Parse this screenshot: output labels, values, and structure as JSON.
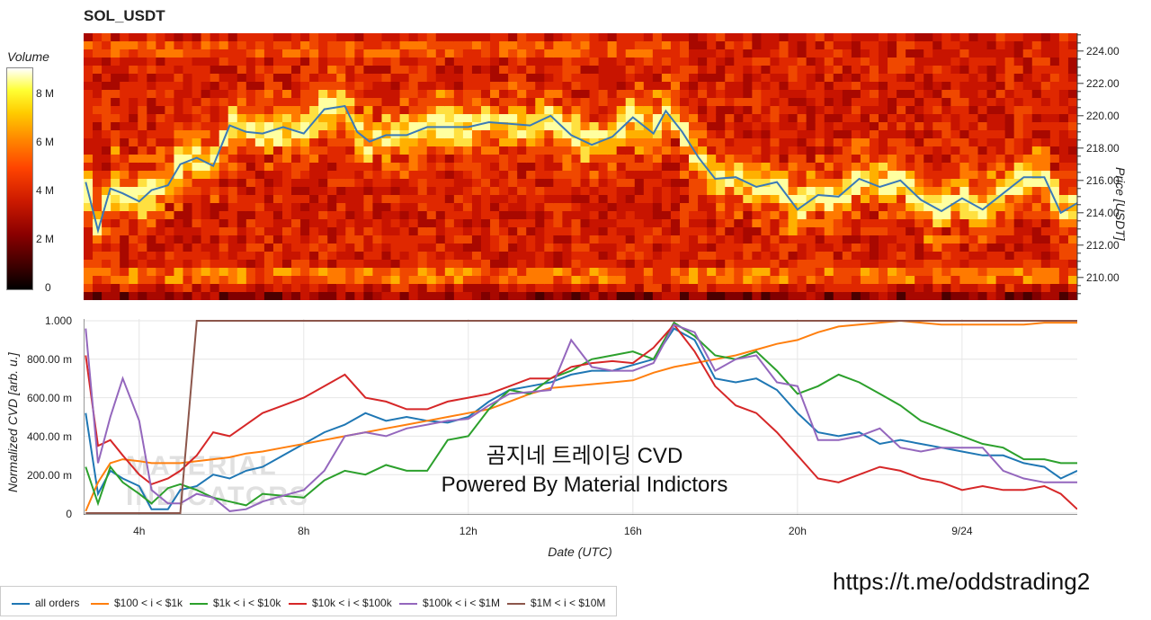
{
  "title": "SOL_USDT",
  "colorbar": {
    "label": "Volume",
    "ticks": [
      "8 M",
      "6 M",
      "4 M",
      "2 M",
      "0"
    ],
    "tick_values": [
      8,
      6,
      4,
      2,
      0
    ],
    "max": 9.3
  },
  "price_axis": {
    "label": "Price [USDT]",
    "ticks": [
      "224.00",
      "222.00",
      "220.00",
      "218.00",
      "216.00",
      "214.00",
      "212.00",
      "210.00"
    ],
    "tick_values": [
      224,
      222,
      220,
      218,
      216,
      214,
      212,
      210
    ],
    "range": [
      208.6,
      225.1
    ]
  },
  "cvd_axis": {
    "label": "Normalized CVD [arb. u.]",
    "ticks": [
      "1.000",
      "800.00 m",
      "600.00 m",
      "400.00 m",
      "200.00 m",
      "0"
    ],
    "tick_values": [
      1.0,
      0.8,
      0.6,
      0.4,
      0.2,
      0
    ]
  },
  "x_axis": {
    "label": "Date (UTC)",
    "ticks": [
      "4h",
      "8h",
      "12h",
      "16h",
      "20h",
      "9/24"
    ],
    "tick_values": [
      4,
      8,
      12,
      16,
      20,
      24
    ],
    "range": [
      2.65,
      26.8
    ]
  },
  "annotation": {
    "line1": "곰지네 트레이딩 CVD",
    "line2": "Powered By Material Indictors"
  },
  "watermark": [
    "MATERIAL",
    "INDICATORS"
  ],
  "link": "https://t.me/oddstrading2",
  "chart_data": [
    {
      "type": "heatmap",
      "title": "SOL_USDT",
      "ylabel": "Price [USDT]",
      "colorbar_label": "Volume",
      "price_line": {
        "color": "#3a7ab8",
        "x": [
          2.7,
          3.0,
          3.3,
          3.6,
          4.0,
          4.3,
          4.7,
          5.0,
          5.4,
          5.8,
          6.2,
          6.6,
          7.0,
          7.5,
          8.0,
          8.5,
          9.0,
          9.3,
          9.6,
          10.0,
          10.5,
          11.0,
          11.5,
          12.0,
          12.5,
          13.0,
          13.5,
          14.0,
          14.5,
          15.0,
          15.5,
          16.0,
          16.5,
          16.8,
          17.2,
          17.6,
          18.0,
          18.5,
          19.0,
          19.5,
          20.0,
          20.5,
          21.0,
          21.5,
          22.0,
          22.5,
          23.0,
          23.5,
          24.0,
          24.5,
          25.0,
          25.5,
          26.0,
          26.4,
          26.8
        ],
        "y": [
          215.9,
          212.9,
          215.5,
          215.2,
          214.7,
          215.4,
          215.7,
          217.0,
          217.4,
          216.9,
          219.4,
          219.0,
          218.9,
          219.3,
          218.9,
          220.4,
          220.6,
          219.0,
          218.4,
          218.8,
          218.8,
          219.3,
          219.3,
          219.3,
          219.6,
          219.5,
          219.4,
          220.0,
          218.8,
          218.2,
          218.7,
          219.9,
          218.9,
          220.3,
          219.0,
          217.4,
          216.1,
          216.2,
          215.6,
          215.9,
          214.2,
          215.1,
          215.0,
          216.1,
          215.6,
          216.0,
          214.8,
          214.1,
          214.9,
          214.2,
          215.2,
          216.2,
          216.2,
          214.0,
          214.6
        ]
      }
    },
    {
      "type": "line",
      "xlabel": "Date (UTC)",
      "ylabel": "Normalized CVD [arb. u.]",
      "ylim": [
        0,
        1.0
      ],
      "x": [
        2.7,
        3.0,
        3.3,
        3.6,
        4.0,
        4.3,
        4.7,
        5.0,
        5.4,
        5.8,
        6.2,
        6.6,
        7.0,
        7.5,
        8.0,
        8.5,
        9.0,
        9.5,
        10.0,
        10.5,
        11.0,
        11.5,
        12.0,
        12.5,
        13.0,
        13.5,
        14.0,
        14.5,
        15.0,
        15.5,
        16.0,
        16.5,
        17.0,
        17.5,
        18.0,
        18.5,
        19.0,
        19.5,
        20.0,
        20.5,
        21.0,
        21.5,
        22.0,
        22.5,
        23.0,
        23.5,
        24.0,
        24.5,
        25.0,
        25.5,
        26.0,
        26.4,
        26.8
      ],
      "series": [
        {
          "name": "all orders",
          "color": "#1f77b4",
          "values": [
            0.52,
            0.1,
            0.22,
            0.18,
            0.14,
            0.02,
            0.02,
            0.12,
            0.14,
            0.2,
            0.18,
            0.22,
            0.24,
            0.3,
            0.36,
            0.42,
            0.46,
            0.52,
            0.48,
            0.5,
            0.48,
            0.47,
            0.5,
            0.58,
            0.64,
            0.66,
            0.68,
            0.72,
            0.74,
            0.74,
            0.77,
            0.8,
            0.96,
            0.9,
            0.7,
            0.68,
            0.7,
            0.64,
            0.52,
            0.42,
            0.4,
            0.42,
            0.36,
            0.38,
            0.36,
            0.34,
            0.32,
            0.3,
            0.3,
            0.26,
            0.24,
            0.18,
            0.22
          ]
        },
        {
          "name": "$100 < i < $1k",
          "color": "#ff7f0e",
          "values": [
            0.01,
            0.16,
            0.26,
            0.28,
            0.27,
            0.26,
            0.26,
            0.26,
            0.27,
            0.28,
            0.29,
            0.31,
            0.32,
            0.34,
            0.36,
            0.38,
            0.4,
            0.42,
            0.44,
            0.46,
            0.48,
            0.5,
            0.52,
            0.54,
            0.58,
            0.62,
            0.65,
            0.66,
            0.67,
            0.68,
            0.69,
            0.73,
            0.76,
            0.78,
            0.8,
            0.82,
            0.85,
            0.88,
            0.9,
            0.94,
            0.97,
            0.98,
            0.99,
            1.0,
            0.99,
            0.98,
            0.98,
            0.98,
            0.98,
            0.98,
            0.99,
            0.99,
            0.99
          ]
        },
        {
          "name": "$1k < i < $10k",
          "color": "#2ca02c",
          "values": [
            0.24,
            0.05,
            0.24,
            0.16,
            0.1,
            0.05,
            0.13,
            0.15,
            0.12,
            0.08,
            0.06,
            0.04,
            0.1,
            0.09,
            0.08,
            0.17,
            0.22,
            0.2,
            0.25,
            0.22,
            0.22,
            0.38,
            0.4,
            0.54,
            0.64,
            0.62,
            0.7,
            0.74,
            0.8,
            0.82,
            0.84,
            0.8,
            0.99,
            0.92,
            0.82,
            0.8,
            0.84,
            0.74,
            0.62,
            0.66,
            0.72,
            0.68,
            0.62,
            0.56,
            0.48,
            0.44,
            0.4,
            0.36,
            0.34,
            0.28,
            0.28,
            0.26,
            0.26
          ]
        },
        {
          "name": "$10k < i < $100k",
          "color": "#d62728",
          "values": [
            0.82,
            0.35,
            0.38,
            0.3,
            0.2,
            0.15,
            0.18,
            0.22,
            0.3,
            0.42,
            0.4,
            0.46,
            0.52,
            0.56,
            0.6,
            0.66,
            0.72,
            0.6,
            0.58,
            0.54,
            0.54,
            0.58,
            0.6,
            0.62,
            0.66,
            0.7,
            0.7,
            0.76,
            0.78,
            0.79,
            0.78,
            0.86,
            0.98,
            0.84,
            0.66,
            0.56,
            0.52,
            0.42,
            0.3,
            0.18,
            0.16,
            0.2,
            0.24,
            0.22,
            0.18,
            0.16,
            0.12,
            0.14,
            0.12,
            0.12,
            0.14,
            0.1,
            0.02
          ]
        },
        {
          "name": "$100k < i < $1M",
          "color": "#9467bd",
          "values": [
            0.96,
            0.26,
            0.5,
            0.7,
            0.48,
            0.12,
            0.05,
            0.05,
            0.1,
            0.08,
            0.01,
            0.02,
            0.06,
            0.09,
            0.12,
            0.22,
            0.4,
            0.42,
            0.4,
            0.44,
            0.46,
            0.48,
            0.49,
            0.56,
            0.62,
            0.63,
            0.64,
            0.9,
            0.76,
            0.74,
            0.74,
            0.78,
            0.98,
            0.94,
            0.74,
            0.8,
            0.82,
            0.68,
            0.66,
            0.38,
            0.38,
            0.4,
            0.44,
            0.34,
            0.32,
            0.34,
            0.34,
            0.34,
            0.22,
            0.18,
            0.16,
            0.16,
            0.16
          ]
        },
        {
          "name": "$1M < i < $10M",
          "color": "#8c564b",
          "values": [
            0.0,
            0.0,
            0.0,
            0.0,
            0.0,
            0.0,
            0.0,
            0.0,
            1.0,
            1.0,
            1.0,
            1.0,
            1.0,
            1.0,
            1.0,
            1.0,
            1.0,
            1.0,
            1.0,
            1.0,
            1.0,
            1.0,
            1.0,
            1.0,
            1.0,
            1.0,
            1.0,
            1.0,
            1.0,
            1.0,
            1.0,
            1.0,
            1.0,
            1.0,
            1.0,
            1.0,
            1.0,
            1.0,
            1.0,
            1.0,
            1.0,
            1.0,
            1.0,
            1.0,
            1.0,
            1.0,
            1.0,
            1.0,
            1.0,
            1.0,
            1.0,
            1.0,
            1.0
          ]
        }
      ]
    }
  ]
}
